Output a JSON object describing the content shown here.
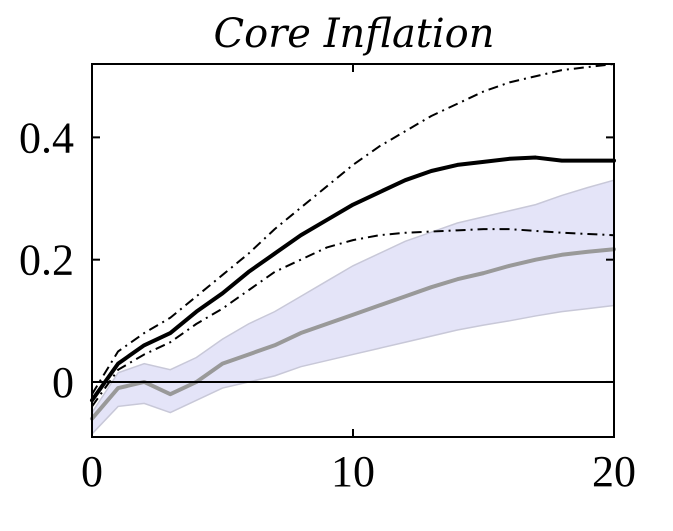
{
  "chart_data": {
    "type": "line",
    "title": "Core Inflation",
    "xlabel": "",
    "ylabel": "",
    "xlim": [
      0,
      20
    ],
    "ylim": [
      -0.09,
      0.52
    ],
    "xticks": [
      0,
      10,
      20
    ],
    "xtick_labels": [
      "0",
      "10",
      "20"
    ],
    "yticks": [
      0,
      0.2,
      0.4
    ],
    "ytick_labels": [
      "0",
      "0.2",
      "0.4"
    ],
    "grid": false,
    "legend": "none",
    "zero_line": 0,
    "x": [
      0,
      1,
      2,
      3,
      4,
      5,
      6,
      7,
      8,
      9,
      10,
      11,
      12,
      13,
      14,
      15,
      16,
      17,
      18,
      19,
      20
    ],
    "series": [
      {
        "style": "solid",
        "color": "#000000",
        "values": [
          -0.03,
          0.03,
          0.06,
          0.08,
          0.115,
          0.145,
          0.18,
          0.21,
          0.24,
          0.265,
          0.29,
          0.31,
          0.33,
          0.345,
          0.355,
          0.36,
          0.365,
          0.367,
          0.362,
          0.362,
          0.362
        ]
      },
      {
        "style": "dash-dot",
        "color": "#000000",
        "values": [
          -0.02,
          0.05,
          0.08,
          0.105,
          0.14,
          0.175,
          0.21,
          0.25,
          0.285,
          0.32,
          0.355,
          0.385,
          0.41,
          0.435,
          0.455,
          0.475,
          0.49,
          0.5,
          0.51,
          0.515,
          0.52
        ]
      },
      {
        "style": "dash-dot",
        "color": "#000000",
        "values": [
          -0.04,
          0.02,
          0.045,
          0.065,
          0.095,
          0.12,
          0.15,
          0.18,
          0.2,
          0.22,
          0.232,
          0.24,
          0.244,
          0.246,
          0.248,
          0.25,
          0.25,
          0.247,
          0.244,
          0.242,
          0.24
        ]
      },
      {
        "style": "solid",
        "color": "#999999",
        "values": [
          -0.06,
          -0.01,
          0.0,
          -0.02,
          0.0,
          0.03,
          0.045,
          0.06,
          0.08,
          0.095,
          0.11,
          0.125,
          0.14,
          0.155,
          0.168,
          0.178,
          0.19,
          0.2,
          0.208,
          0.213,
          0.217
        ]
      }
    ],
    "band": {
      "color": "#e4e4f8",
      "edge_color": "#c8c8d8",
      "upper": [
        -0.05,
        0.015,
        0.03,
        0.02,
        0.04,
        0.07,
        0.095,
        0.115,
        0.14,
        0.165,
        0.19,
        0.21,
        0.23,
        0.245,
        0.26,
        0.27,
        0.28,
        0.29,
        0.305,
        0.318,
        0.33
      ],
      "lower": [
        -0.085,
        -0.04,
        -0.035,
        -0.05,
        -0.03,
        -0.01,
        0.0,
        0.01,
        0.025,
        0.035,
        0.045,
        0.055,
        0.065,
        0.075,
        0.085,
        0.093,
        0.1,
        0.108,
        0.115,
        0.12,
        0.125
      ]
    }
  }
}
